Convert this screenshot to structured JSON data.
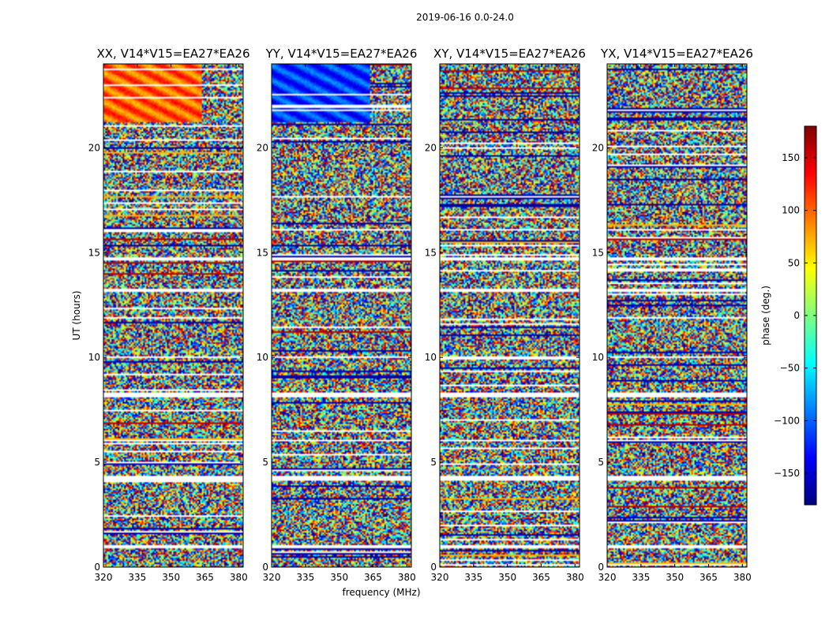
{
  "figure": {
    "suptitle": "2019-06-16 0.0-24.0"
  },
  "chart_data": {
    "type": "heatmap",
    "panels": [
      {
        "title": "XX, V14*V15=EA27*EA26"
      },
      {
        "title": "YY, V14*V15=EA27*EA26"
      },
      {
        "title": "XY, V14*V15=EA27*EA26"
      },
      {
        "title": "YX, V14*V15=EA27*EA26"
      }
    ],
    "xlabel": "frequency (MHz)",
    "ylabel": "UT (hours)",
    "xlim": [
      320,
      382
    ],
    "ylim": [
      0,
      24
    ],
    "xticks": [
      320,
      335,
      350,
      365,
      380
    ],
    "yticks": [
      0,
      5,
      10,
      15,
      20
    ],
    "colorbar": {
      "label": "phase (deg.)",
      "range": [
        -180,
        180
      ],
      "ticks": [
        -150,
        -100,
        -50,
        0,
        50,
        100,
        150
      ],
      "tick_labels": [
        "−150",
        "−100",
        "−50",
        "0",
        "50",
        "100",
        "150"
      ],
      "colormap": "jet"
    },
    "flagged_hours": [
      [
        0.88,
        1.02
      ],
      [
        4.15,
        4.35
      ],
      [
        8.1,
        8.3
      ],
      [
        13.1,
        13.25
      ],
      [
        16.05,
        16.15
      ],
      [
        14.65,
        14.8
      ],
      [
        10.0,
        10.05
      ],
      [
        6.0,
        6.05
      ]
    ],
    "colormap_stops": [
      "#00007f",
      "#0000ff",
      "#007fff",
      "#00ffff",
      "#7fff7f",
      "#ffff00",
      "#ff7f00",
      "#ff0000",
      "#7f0000"
    ]
  }
}
